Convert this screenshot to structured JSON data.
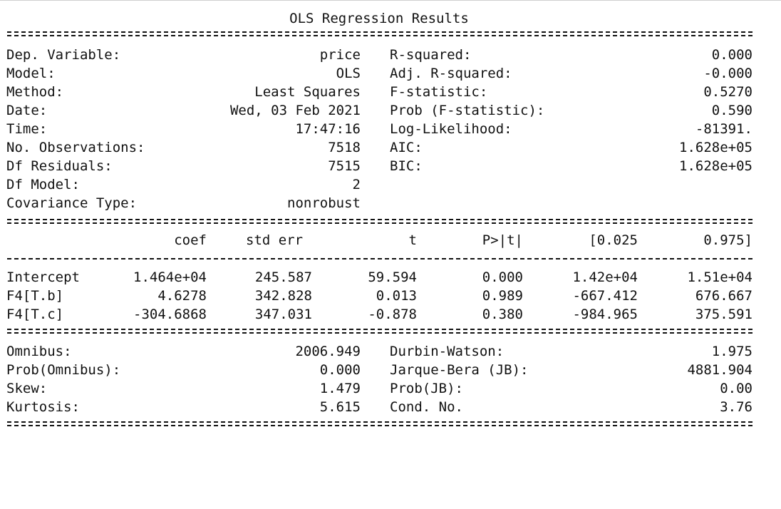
{
  "title": "OLS Regression Results",
  "summary_left": [
    {
      "label": "Dep. Variable:",
      "value": "price"
    },
    {
      "label": "Model:",
      "value": "OLS"
    },
    {
      "label": "Method:",
      "value": "Least Squares"
    },
    {
      "label": "Date:",
      "value": "Wed, 03 Feb 2021"
    },
    {
      "label": "Time:",
      "value": "17:47:16"
    },
    {
      "label": "No. Observations:",
      "value": "7518"
    },
    {
      "label": "Df Residuals:",
      "value": "7515"
    },
    {
      "label": "Df Model:",
      "value": "2"
    },
    {
      "label": "Covariance Type:",
      "value": "nonrobust"
    }
  ],
  "summary_right": [
    {
      "label": "R-squared:",
      "value": "0.000"
    },
    {
      "label": "Adj. R-squared:",
      "value": "-0.000"
    },
    {
      "label": "F-statistic:",
      "value": "0.5270"
    },
    {
      "label": "Prob (F-statistic):",
      "value": "0.590"
    },
    {
      "label": "Log-Likelihood:",
      "value": "-81391."
    },
    {
      "label": "AIC:",
      "value": "1.628e+05"
    },
    {
      "label": "BIC:",
      "value": "1.628e+05"
    }
  ],
  "coef_table": {
    "headers": [
      "coef",
      "std err",
      "t",
      "P>|t|",
      "[0.025",
      "0.975]"
    ],
    "rows": [
      {
        "name": "Intercept",
        "values": [
          "1.464e+04",
          "245.587",
          "59.594",
          "0.000",
          "1.42e+04",
          "1.51e+04"
        ]
      },
      {
        "name": "F4[T.b]",
        "values": [
          "4.6278",
          "342.828",
          "0.013",
          "0.989",
          "-667.412",
          "676.667"
        ]
      },
      {
        "name": "F4[T.c]",
        "values": [
          "-304.6868",
          "347.031",
          "-0.878",
          "0.380",
          "-984.965",
          "375.591"
        ]
      }
    ]
  },
  "diagnostics_left": [
    {
      "label": "Omnibus:",
      "value": "2006.949"
    },
    {
      "label": "Prob(Omnibus):",
      "value": "0.000"
    },
    {
      "label": "Skew:",
      "value": "1.479"
    },
    {
      "label": "Kurtosis:",
      "value": "5.615"
    }
  ],
  "diagnostics_right": [
    {
      "label": "Durbin-Watson:",
      "value": "1.975"
    },
    {
      "label": "Jarque-Bera (JB):",
      "value": "4881.904"
    },
    {
      "label": "Prob(JB):",
      "value": "0.00"
    },
    {
      "label": "Cond. No.",
      "value": "3.76"
    }
  ]
}
